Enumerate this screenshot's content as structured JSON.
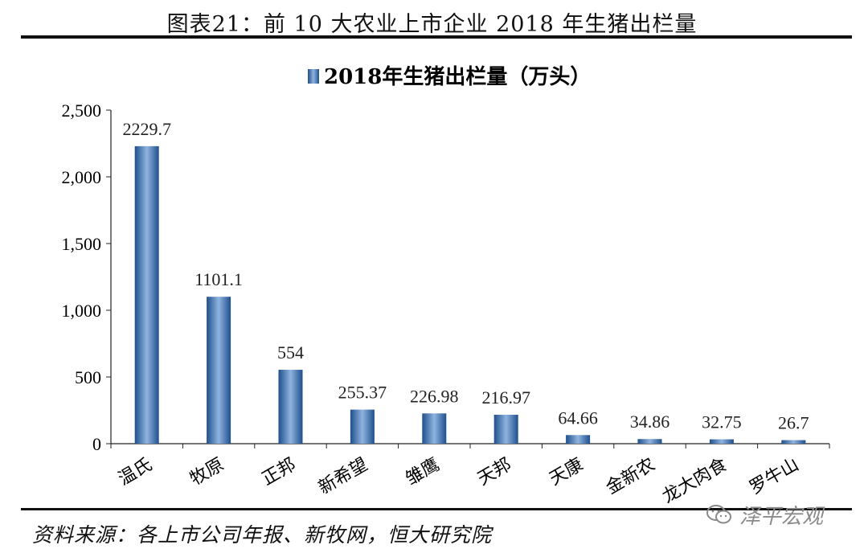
{
  "figure": {
    "title": "图表21：前 10 大农业上市企业 2018 年生猪出栏量",
    "source": "资料来源：各上市公司年报、新牧网，恒大研究院",
    "watermark": "泽平宏观",
    "watermark_icon": "wechat-icon"
  },
  "chart_data": {
    "type": "bar",
    "title": "",
    "xlabel": "",
    "ylabel": "",
    "categories": [
      "温氏",
      "牧原",
      "正邦",
      "新希望",
      "雏鹰",
      "天邦",
      "天康",
      "金新农",
      "龙大肉食",
      "罗牛山"
    ],
    "series": [
      {
        "name": "2018年生猪出栏量（万头）",
        "values": [
          2229.7,
          1101.1,
          554,
          255.37,
          226.98,
          216.97,
          64.66,
          34.86,
          32.75,
          26.7
        ],
        "labels": [
          "2229.7",
          "1101.1",
          "554",
          "255.37",
          "226.98",
          "216.97",
          "64.66",
          "34.86",
          "32.75",
          "26.7"
        ]
      }
    ],
    "ylim": [
      0,
      2500
    ],
    "yticks": [
      0,
      500,
      1000,
      1500,
      2000,
      2500
    ],
    "ytick_labels": [
      "0",
      "500",
      "1,000",
      "1,500",
      "2,000",
      "2,500"
    ],
    "grid": false,
    "legend_position": "top-center",
    "bar_color": "#3d72b0"
  }
}
